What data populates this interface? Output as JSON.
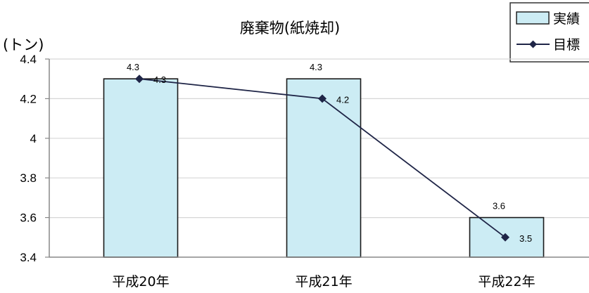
{
  "chart_data": {
    "type": "bar",
    "title": "廃棄物(紙焼却)",
    "ylabel": "(トン)",
    "xlabel": "",
    "categories": [
      "平成20年",
      "平成21年",
      "平成22年"
    ],
    "series": [
      {
        "name": "実績",
        "type": "bar",
        "values": [
          4.3,
          4.3,
          3.6
        ],
        "color": "#ccecf4"
      },
      {
        "name": "目標",
        "type": "line",
        "values": [
          4.3,
          4.2,
          3.5
        ],
        "color": "#1f2547"
      }
    ],
    "yticks": [
      "4.4",
      "4.2",
      "4",
      "3.8",
      "3.6",
      "3.4"
    ],
    "ytick_values": [
      4.4,
      4.2,
      4.0,
      3.8,
      3.6,
      3.4
    ],
    "ylim": [
      3.4,
      4.4
    ],
    "grid": true,
    "legend_position": "top-right"
  }
}
